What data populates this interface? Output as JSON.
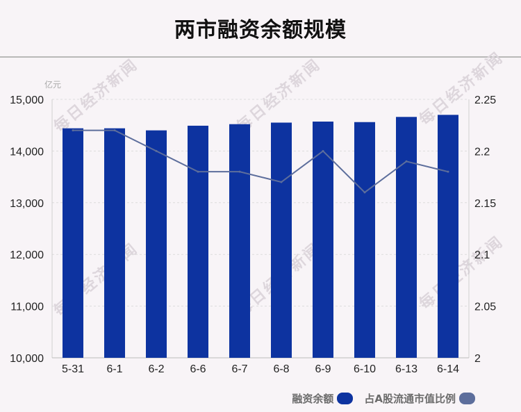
{
  "title": "两市融资余额规模",
  "watermark_text": "每日经济新闻",
  "chart_data": {
    "type": "bar",
    "categories": [
      "5-31",
      "6-1",
      "6-2",
      "6-6",
      "6-7",
      "6-8",
      "6-9",
      "6-10",
      "6-13",
      "6-14"
    ],
    "series": [
      {
        "name": "融资余额",
        "type": "bar",
        "axis": "left",
        "color": "#0d33a0",
        "values": [
          14440,
          14440,
          14400,
          14490,
          14520,
          14550,
          14570,
          14560,
          14660,
          14700
        ]
      },
      {
        "name": "占A股流通市值比例",
        "type": "line",
        "axis": "right",
        "color": "#5d6e9c",
        "values": [
          2.22,
          2.22,
          2.2,
          2.18,
          2.18,
          2.17,
          2.2,
          2.16,
          2.19,
          2.18
        ]
      }
    ],
    "y_left": {
      "unit": "亿元",
      "range": [
        10000,
        15000
      ],
      "ticks": [
        "10,000",
        "11,000",
        "12,000",
        "13,000",
        "14,000",
        "15,000"
      ]
    },
    "y_right": {
      "range": [
        2,
        2.25
      ],
      "ticks": [
        "2",
        "2.05",
        "2.1",
        "2.15",
        "2.2",
        "2.25"
      ]
    },
    "gridlines": true,
    "legend_position": "bottom-right"
  }
}
